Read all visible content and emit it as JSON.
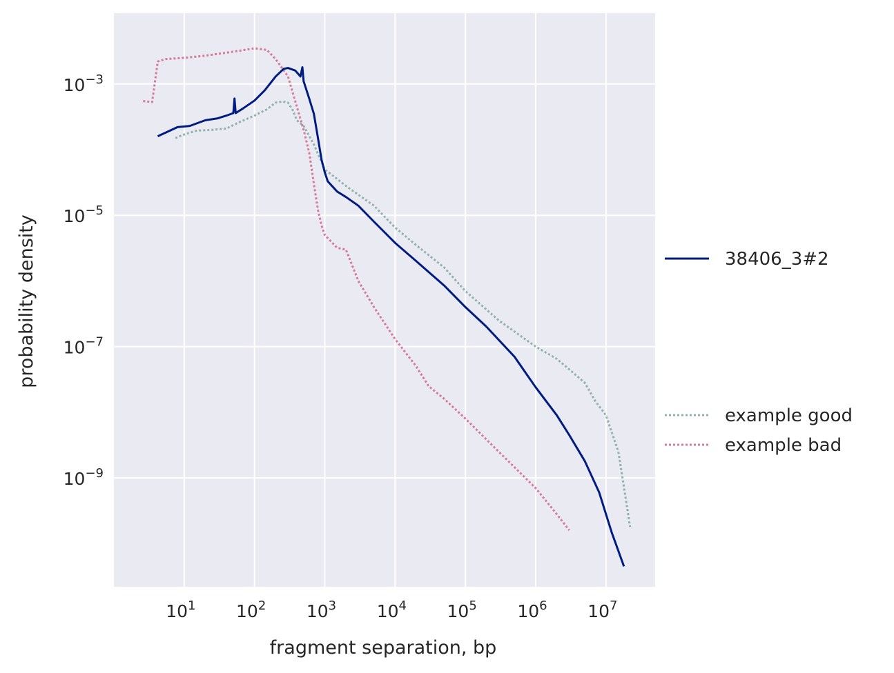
{
  "chart_data": {
    "type": "line",
    "xlabel": "fragment separation, bp",
    "ylabel": "probability density",
    "xscale": "log",
    "yscale": "log",
    "xlim": [
      1.0,
      50000000
    ],
    "ylim": [
      2.2e-11,
      0.012
    ],
    "grid": true,
    "background_color": "#eaeaf2",
    "x_ticks": [
      {
        "value": 10,
        "base": "10",
        "exp": "1"
      },
      {
        "value": 100,
        "base": "10",
        "exp": "2"
      },
      {
        "value": 1000,
        "base": "10",
        "exp": "3"
      },
      {
        "value": 10000,
        "base": "10",
        "exp": "4"
      },
      {
        "value": 100000,
        "base": "10",
        "exp": "5"
      },
      {
        "value": 1000000,
        "base": "10",
        "exp": "6"
      },
      {
        "value": 10000000,
        "base": "10",
        "exp": "7"
      }
    ],
    "y_ticks": [
      {
        "value": 0.001,
        "base": "10",
        "exp": "−3"
      },
      {
        "value": 1e-05,
        "base": "10",
        "exp": "−5"
      },
      {
        "value": 1e-07,
        "base": "10",
        "exp": "−7"
      },
      {
        "value": 1e-09,
        "base": "10",
        "exp": "−9"
      }
    ],
    "legend_placement": "right, outside plot",
    "series": [
      {
        "name": "38406_3#2",
        "color": "#001c7f",
        "style": "solid",
        "points": [
          [
            4.2,
            0.00016
          ],
          [
            8.0,
            0.00022
          ],
          [
            12,
            0.00023
          ],
          [
            20,
            0.00028
          ],
          [
            30,
            0.0003
          ],
          [
            40,
            0.00033
          ],
          [
            50,
            0.00036
          ],
          [
            52,
            0.0006
          ],
          [
            54,
            0.00036
          ],
          [
            70,
            0.00043
          ],
          [
            100,
            0.00056
          ],
          [
            140,
            0.0008
          ],
          [
            200,
            0.0013
          ],
          [
            260,
            0.0017
          ],
          [
            300,
            0.00175
          ],
          [
            380,
            0.0016
          ],
          [
            450,
            0.0013
          ],
          [
            480,
            0.0018
          ],
          [
            500,
            0.0011
          ],
          [
            600,
            0.0006
          ],
          [
            700,
            0.00035
          ],
          [
            800,
            0.00015
          ],
          [
            900,
            7e-05
          ],
          [
            1000,
            4.5e-05
          ],
          [
            1100,
            3.3e-05
          ],
          [
            1500,
            2.3e-05
          ],
          [
            2000,
            1.9e-05
          ],
          [
            3000,
            1.4e-05
          ],
          [
            5000,
            8e-06
          ],
          [
            10000,
            3.8e-06
          ],
          [
            20000,
            2e-06
          ],
          [
            50000,
            8.5e-07
          ],
          [
            100000,
            4e-07
          ],
          [
            200000,
            2e-07
          ],
          [
            500000,
            7e-08
          ],
          [
            1000000,
            2.4e-08
          ],
          [
            2000000,
            9e-09
          ],
          [
            3000000,
            4.5e-09
          ],
          [
            5000000,
            1.8e-09
          ],
          [
            8000000,
            6e-10
          ],
          [
            12000000,
            1.5e-10
          ],
          [
            18000000,
            4.5e-11
          ]
        ]
      },
      {
        "name": "example good",
        "color": "#8fb2ab",
        "style": "dotted",
        "points": [
          [
            7.5,
            0.00015
          ],
          [
            10,
            0.00017
          ],
          [
            15,
            0.000195
          ],
          [
            25,
            0.0002
          ],
          [
            40,
            0.00021
          ],
          [
            60,
            0.00026
          ],
          [
            100,
            0.00033
          ],
          [
            150,
            0.00041
          ],
          [
            200,
            0.00052
          ],
          [
            250,
            0.00054
          ],
          [
            300,
            0.00052
          ],
          [
            350,
            0.0004
          ],
          [
            400,
            0.00028
          ],
          [
            500,
            0.00023
          ],
          [
            700,
            0.00012
          ],
          [
            1000,
            5e-05
          ],
          [
            2000,
            2.8e-05
          ],
          [
            5000,
            1.4e-05
          ],
          [
            10000,
            6.5e-06
          ],
          [
            20000,
            3.5e-06
          ],
          [
            50000,
            1.6e-06
          ],
          [
            100000,
            7e-07
          ],
          [
            300000,
            2.5e-07
          ],
          [
            1000000,
            1e-07
          ],
          [
            2000000,
            6.5e-08
          ],
          [
            3000000,
            4.5e-08
          ],
          [
            5000000,
            2.8e-08
          ],
          [
            7000000,
            1.5e-08
          ],
          [
            10000000,
            9e-09
          ],
          [
            15000000,
            2.5e-09
          ],
          [
            19000000,
            5e-10
          ],
          [
            22000000,
            1.8e-10
          ]
        ]
      },
      {
        "name": "example bad",
        "color": "#d5799b",
        "style": "dotted",
        "points": [
          [
            2.6,
            0.00055
          ],
          [
            3.5,
            0.00053
          ],
          [
            4.2,
            0.0022
          ],
          [
            5.5,
            0.0024
          ],
          [
            10,
            0.0025
          ],
          [
            20,
            0.0027
          ],
          [
            50,
            0.0031
          ],
          [
            100,
            0.0035
          ],
          [
            150,
            0.0033
          ],
          [
            200,
            0.0024
          ],
          [
            300,
            0.0013
          ],
          [
            400,
            0.00045
          ],
          [
            500,
            0.0002
          ],
          [
            600,
            9e-05
          ],
          [
            700,
            3e-05
          ],
          [
            800,
            1.2e-05
          ],
          [
            900,
            7e-06
          ],
          [
            1000,
            5e-06
          ],
          [
            1500,
            3.2e-06
          ],
          [
            2000,
            3e-06
          ],
          [
            3000,
            1e-06
          ],
          [
            5000,
            4e-07
          ],
          [
            10000,
            1.3e-07
          ],
          [
            20000,
            5e-08
          ],
          [
            30000,
            2.5e-08
          ],
          [
            50000,
            1.6e-08
          ],
          [
            100000,
            8e-09
          ],
          [
            300000,
            2.5e-09
          ],
          [
            1000000,
            7e-10
          ],
          [
            2000000,
            2.8e-10
          ],
          [
            3000000,
            1.6e-10
          ]
        ]
      }
    ]
  }
}
